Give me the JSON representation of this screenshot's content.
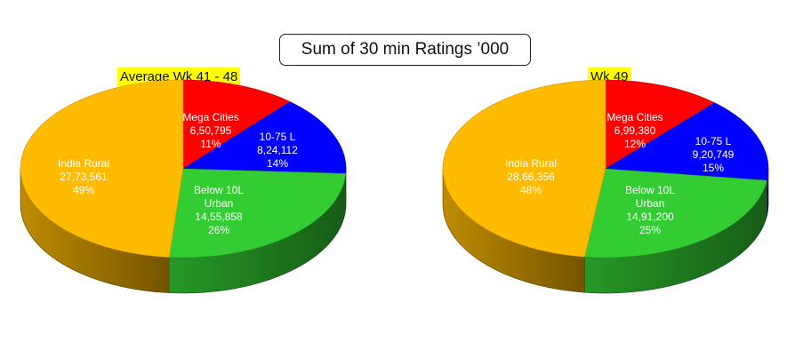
{
  "colors": {
    "mega": "#ff0000",
    "tier": "#0000ff",
    "below": "#33cc33",
    "rural": "#ffbb00"
  },
  "chart_data": {
    "title": "Sum of 30 min Ratings ’000",
    "charts": [
      {
        "type": "pie",
        "subtitle": "Average Wk 41 - 48",
        "slices": [
          {
            "label": "Mega Cities",
            "value_text": "6,50,795",
            "value": 650795,
            "pct": "11%"
          },
          {
            "label": "10-75 L",
            "value_text": "8,24,112",
            "value": 824112,
            "pct": "14%"
          },
          {
            "label": "Below 10L Urban",
            "value_text": "14,55,858",
            "value": 1455858,
            "pct": "26%"
          },
          {
            "label": "India Rural",
            "value_text": "27,73,561",
            "value": 2773561,
            "pct": "49%"
          }
        ]
      },
      {
        "type": "pie",
        "subtitle": "Wk 49",
        "slices": [
          {
            "label": "Mega Cities",
            "value_text": "6,99,380",
            "value": 699380,
            "pct": "12%"
          },
          {
            "label": "10-75 L",
            "value_text": "9,20,749",
            "value": 920749,
            "pct": "15%"
          },
          {
            "label": "Below 10L Urban",
            "value_text": "14,91,200",
            "value": 1491200,
            "pct": "25%"
          },
          {
            "label": "India Rural",
            "value_text": "28,66,356",
            "value": 2866356,
            "pct": "48%"
          }
        ]
      }
    ]
  }
}
